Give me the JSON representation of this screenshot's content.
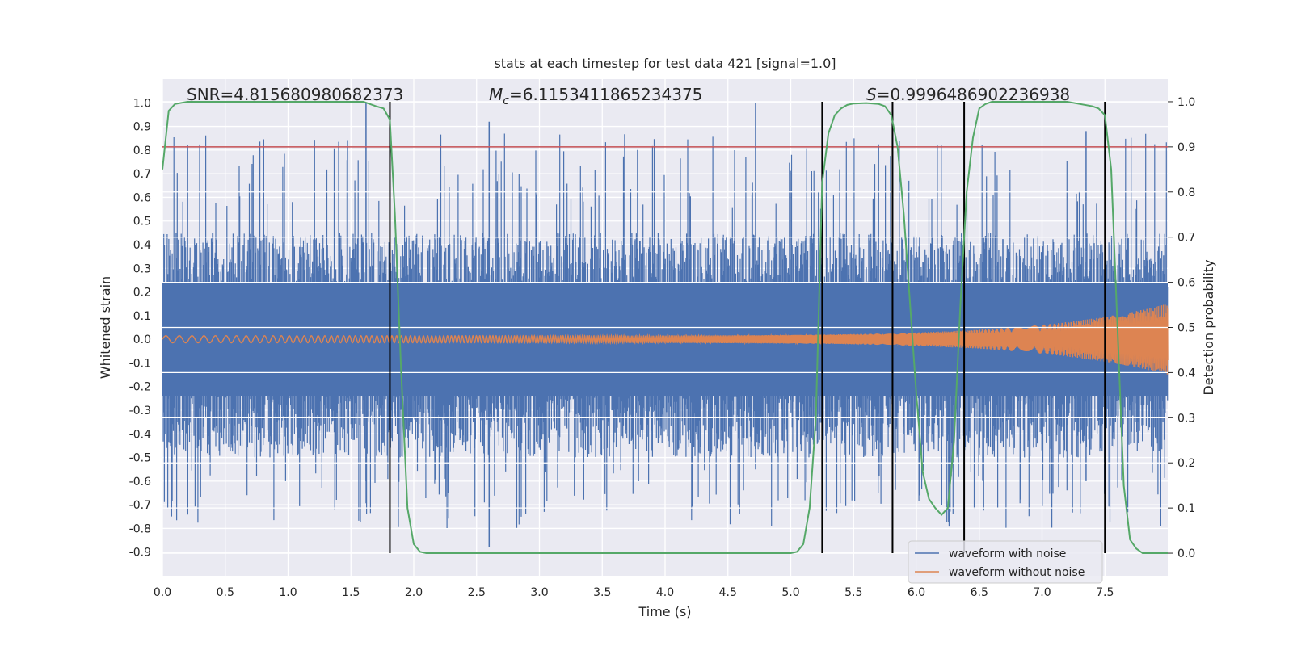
{
  "chart_data": {
    "type": "line",
    "title": "stats at each timestep for test data 421 [signal=1.0]",
    "xlabel": "Time (s)",
    "ylabel": "Whitened strain",
    "y2label": "Detection probability",
    "xlim": [
      0.0,
      8.0
    ],
    "ylim": [
      -1.0,
      1.1
    ],
    "y2lim": [
      -0.05,
      1.05
    ],
    "x_ticks": [
      "0.0",
      "0.5",
      "1.0",
      "1.5",
      "2.0",
      "2.5",
      "3.0",
      "3.5",
      "4.0",
      "4.5",
      "5.0",
      "5.5",
      "6.0",
      "6.5",
      "7.0",
      "7.5"
    ],
    "y_ticks": [
      "1.0",
      "0.9",
      "0.8",
      "0.7",
      "0.6",
      "0.5",
      "0.4",
      "0.3",
      "0.2",
      "0.1",
      "0.0",
      "-0.1",
      "-0.2",
      "-0.3",
      "-0.4",
      "-0.5",
      "-0.6",
      "-0.7",
      "-0.8",
      "-0.9"
    ],
    "y2_ticks": [
      "1.0",
      "0.9",
      "0.8",
      "0.7",
      "0.6",
      "0.5",
      "0.4",
      "0.3",
      "0.2",
      "0.1",
      "0.0"
    ],
    "annotations": {
      "snr": "SNR=4.815680980682373",
      "mc_label": "M",
      "mc_sub": "c",
      "mc_value": "=6.1153411865234375",
      "s_label": "S",
      "s_value": "=0.9996486902236938"
    },
    "threshold_probability": 0.9,
    "event_lines_x": [
      1.81,
      5.25,
      5.81,
      6.38,
      7.5
    ],
    "detection_probability": {
      "x": [
        0.0,
        0.05,
        0.1,
        0.2,
        0.4,
        0.8,
        1.2,
        1.6,
        1.7,
        1.76,
        1.81,
        1.85,
        1.9,
        1.95,
        2.0,
        2.05,
        2.1,
        2.5,
        3.0,
        3.5,
        4.0,
        4.5,
        5.0,
        5.05,
        5.1,
        5.15,
        5.2,
        5.25,
        5.3,
        5.35,
        5.4,
        5.45,
        5.5,
        5.6,
        5.7,
        5.75,
        5.8,
        5.85,
        5.9,
        5.95,
        6.0,
        6.05,
        6.1,
        6.15,
        6.2,
        6.25,
        6.3,
        6.35,
        6.4,
        6.45,
        6.5,
        6.55,
        6.6,
        6.8,
        7.0,
        7.2,
        7.4,
        7.45,
        7.5,
        7.55,
        7.6,
        7.65,
        7.7,
        7.75,
        7.8,
        7.9,
        8.0
      ],
      "y": [
        0.85,
        0.98,
        0.995,
        1.0,
        1.0,
        1.0,
        1.0,
        1.0,
        0.99,
        0.985,
        0.96,
        0.75,
        0.4,
        0.1,
        0.02,
        0.003,
        0.0,
        0.0,
        0.0,
        0.0,
        0.0,
        0.0,
        0.0,
        0.003,
        0.02,
        0.1,
        0.3,
        0.82,
        0.93,
        0.97,
        0.985,
        0.993,
        0.996,
        0.997,
        0.995,
        0.99,
        0.97,
        0.9,
        0.75,
        0.55,
        0.35,
        0.18,
        0.12,
        0.1,
        0.085,
        0.1,
        0.25,
        0.55,
        0.8,
        0.92,
        0.985,
        0.995,
        1.0,
        1.0,
        1.0,
        1.0,
        0.99,
        0.985,
        0.97,
        0.85,
        0.5,
        0.15,
        0.03,
        0.01,
        0.0,
        0.0,
        0.0
      ]
    },
    "series": [
      {
        "name": "waveform with noise",
        "color": "#4c72b0",
        "envelope_positive": 0.45,
        "envelope_negative": -0.5,
        "peak_max": 1.0,
        "peak_min": -0.88
      },
      {
        "name": "waveform without noise",
        "color": "#dd8452",
        "amplitude_start": 0.015,
        "amplitude_end": 0.15
      }
    ],
    "probability_color": "#55a868",
    "threshold_color": "#c44e52",
    "event_line_color": "#000000",
    "grid": true,
    "legend_position": "lower-right"
  }
}
